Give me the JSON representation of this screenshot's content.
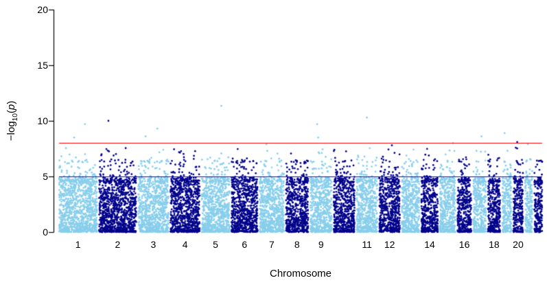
{
  "background": "#FFFFFF",
  "chart_data": {
    "type": "scatter",
    "subtype": "manhattan-plot",
    "xlabel": "Chromosome",
    "ylabel": {
      "prefix": "−log",
      "sub": "10",
      "open": "(",
      "var": "p",
      "close": ")"
    },
    "ylim": [
      0,
      20
    ],
    "yticks": [
      0,
      5,
      10,
      15,
      20
    ],
    "grid": false,
    "legend": "none",
    "colors": {
      "odd": "#87CEEB",
      "even": "#00008B"
    },
    "threshold_lines": [
      {
        "name": "genome-wide-significance",
        "value": 8,
        "color": "#FF0000"
      },
      {
        "name": "suggestive-significance",
        "value": 5,
        "color": "#0000FF"
      }
    ],
    "chromosomes": [
      {
        "label": "1",
        "size": 249
      },
      {
        "label": "2",
        "size": 243
      },
      {
        "label": "3",
        "size": 198
      },
      {
        "label": "4",
        "size": 191
      },
      {
        "label": "5",
        "size": 181
      },
      {
        "label": "6",
        "size": 171
      },
      {
        "label": "7",
        "size": 159
      },
      {
        "label": "8",
        "size": 146
      },
      {
        "label": "9",
        "size": 141
      },
      {
        "label": "",
        "size": 136
      },
      {
        "label": "11",
        "size": 135
      },
      {
        "label": "12",
        "size": 134
      },
      {
        "label": "",
        "size": 115
      },
      {
        "label": "14",
        "size": 107
      },
      {
        "label": "",
        "size": 102
      },
      {
        "label": "16",
        "size": 90
      },
      {
        "label": "",
        "size": 83
      },
      {
        "label": "18",
        "size": 80
      },
      {
        "label": "",
        "size": 59
      },
      {
        "label": "20",
        "size": 63
      },
      {
        "label": "",
        "size": 48
      },
      {
        "label": "",
        "size": 51
      }
    ],
    "peaks": [
      {
        "chr": 1,
        "value": 9.7
      },
      {
        "chr": 1,
        "value": 8.5
      },
      {
        "chr": 2,
        "value": 10.0
      },
      {
        "chr": 3,
        "value": 9.3
      },
      {
        "chr": 3,
        "value": 8.6
      },
      {
        "chr": 5,
        "value": 11.35
      },
      {
        "chr": 7,
        "value": 7.9
      },
      {
        "chr": 9,
        "value": 9.7
      },
      {
        "chr": 9,
        "value": 8.5
      },
      {
        "chr": 11,
        "value": 10.3
      },
      {
        "chr": 12,
        "value": 7.8
      },
      {
        "chr": 15,
        "value": 8.0
      },
      {
        "chr": 17,
        "value": 8.6
      },
      {
        "chr": 19,
        "value": 8.9
      },
      {
        "chr": 20,
        "value": 8.1
      },
      {
        "chr": 21,
        "value": 7.9
      }
    ],
    "bulk_max": 4.9,
    "point_radius": 1.4,
    "seed": 42
  }
}
